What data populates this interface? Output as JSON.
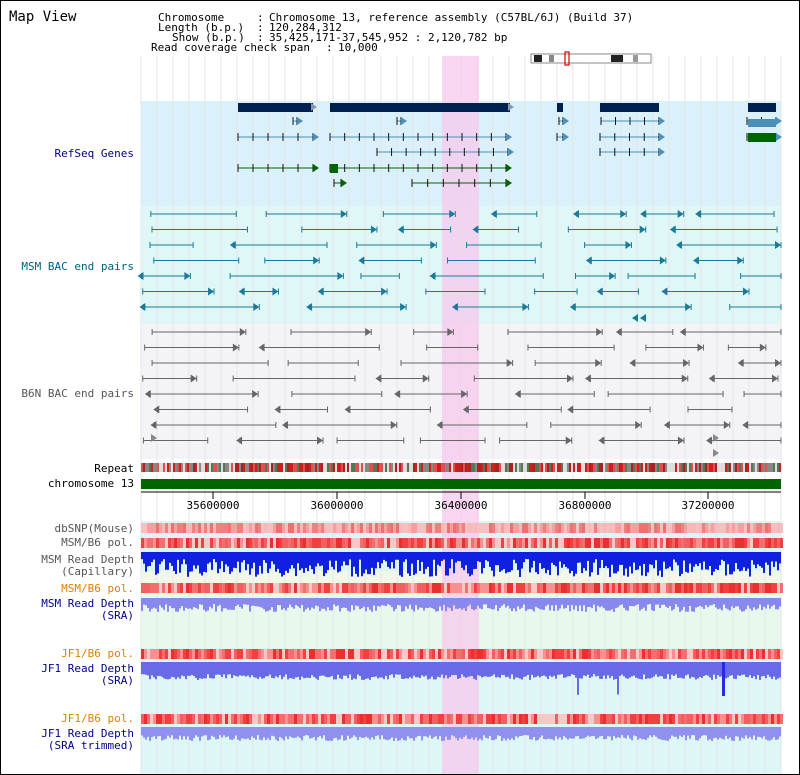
{
  "page_title": "Map View",
  "info": [
    {
      "key": "Chromosome",
      "value": "Chromosome 13, reference assembly (C57BL/6J) (Build 37)"
    },
    {
      "key": "Length (b.p.)",
      "value": "120,284,312"
    },
    {
      "key": "Show (b.p.)",
      "value": "35,425,171-37,545,952 : 2,120,782 bp"
    },
    {
      "key": "Read coverage check span",
      "value": "10,000"
    }
  ],
  "tracks": {
    "refseq": "RefSeq Genes",
    "msm_bac": "MSM BAC end pairs",
    "b6n_bac": "B6N BAC end pairs",
    "repeat": "Repeat",
    "chromosome": "chromosome 13",
    "dbsnp": "dbSNP(Mouse)",
    "msm_b6_pol_1": "MSM/B6 pol.",
    "msm_depth_cap_1": "MSM Read Depth",
    "msm_depth_cap_2": "(Capillary)",
    "msm_b6_pol_2": "MSM/B6 pol.",
    "msm_depth_sra_1": "MSM Read Depth",
    "msm_depth_sra_2": "(SRA)",
    "jf1_b6_pol_1": "JF1/B6 pol.",
    "jf1_depth_sra_1": "JF1 Read Depth",
    "jf1_depth_sra_2": "(SRA)",
    "jf1_b6_pol_2": "JF1/B6 pol.",
    "jf1_depth_trim_1": "JF1 Read Depth",
    "jf1_depth_trim_2": "(SRA trimmed)"
  },
  "axis_ticks": [
    "35600000",
    "36000000",
    "36400000",
    "36800000",
    "37200000"
  ],
  "colors": {
    "refseq_label": "#00008b",
    "msm_bac_label": "#006080",
    "b6n_label": "#555555",
    "pol_label": "#e08000",
    "depth_label": "#00008b",
    "highlight": "#f8d0f0",
    "chrom_bar": "#006400"
  }
}
